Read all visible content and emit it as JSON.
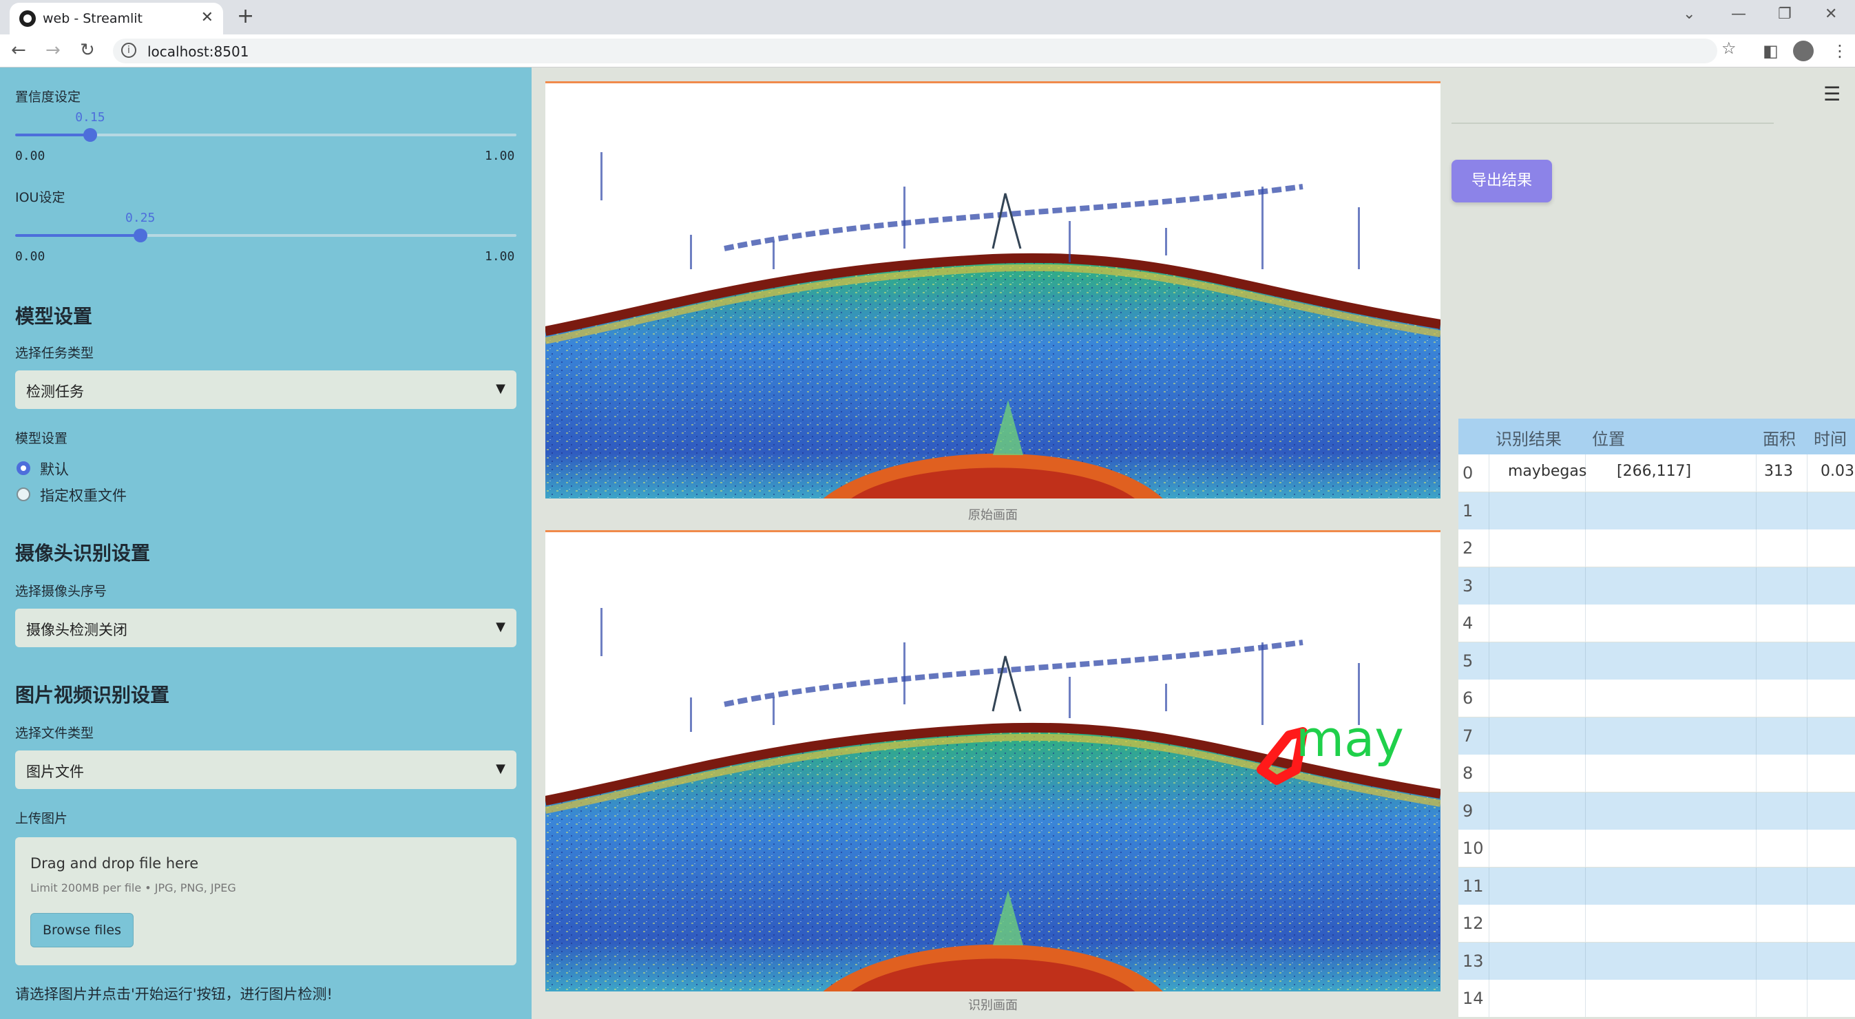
{
  "browser": {
    "tab_title": "web - Streamlit",
    "url": "localhost:8501"
  },
  "sidebar": {
    "confidence": {
      "label": "置信度设定",
      "value": "0.15",
      "value_num": 0.15,
      "min": "0.00",
      "max": "1.00"
    },
    "iou": {
      "label": "IOU设定",
      "value": "0.25",
      "value_num": 0.25,
      "min": "0.00",
      "max": "1.00"
    },
    "model_heading": "模型设置",
    "task_label": "选择任务类型",
    "task_value": "检测任务",
    "model_label": "模型设置",
    "model_options": [
      "默认",
      "指定权重文件"
    ],
    "camera_heading": "摄像头识别设置",
    "camera_label": "选择摄像头序号",
    "camera_value": "摄像头检测关闭",
    "media_heading": "图片视频识别设置",
    "file_type_label": "选择文件类型",
    "file_type_value": "图片文件",
    "upload_label": "上传图片",
    "upload_title": "Drag and drop file here",
    "upload_limit": "Limit 200MB per file • JPG, PNG, JPEG",
    "browse_label": "Browse files",
    "note": "请选择图片并点击'开始运行'按钮，进行图片检测!"
  },
  "main": {
    "caption_original": "原始画面",
    "caption_detected": "识别画面",
    "detection_text": "may"
  },
  "right": {
    "export_label": "导出结果",
    "table": {
      "headers": [
        "识别结果",
        "位置",
        "面积",
        "时间"
      ],
      "rows": [
        {
          "idx": "0",
          "result": "maybegas",
          "position": "[266,117]",
          "area": "313",
          "time": "0.03"
        },
        {
          "idx": "1"
        },
        {
          "idx": "2"
        },
        {
          "idx": "3"
        },
        {
          "idx": "4"
        },
        {
          "idx": "5"
        },
        {
          "idx": "6"
        },
        {
          "idx": "7"
        },
        {
          "idx": "8"
        },
        {
          "idx": "9"
        },
        {
          "idx": "10"
        },
        {
          "idx": "11"
        },
        {
          "idx": "12"
        },
        {
          "idx": "13"
        },
        {
          "idx": "14"
        }
      ]
    }
  }
}
